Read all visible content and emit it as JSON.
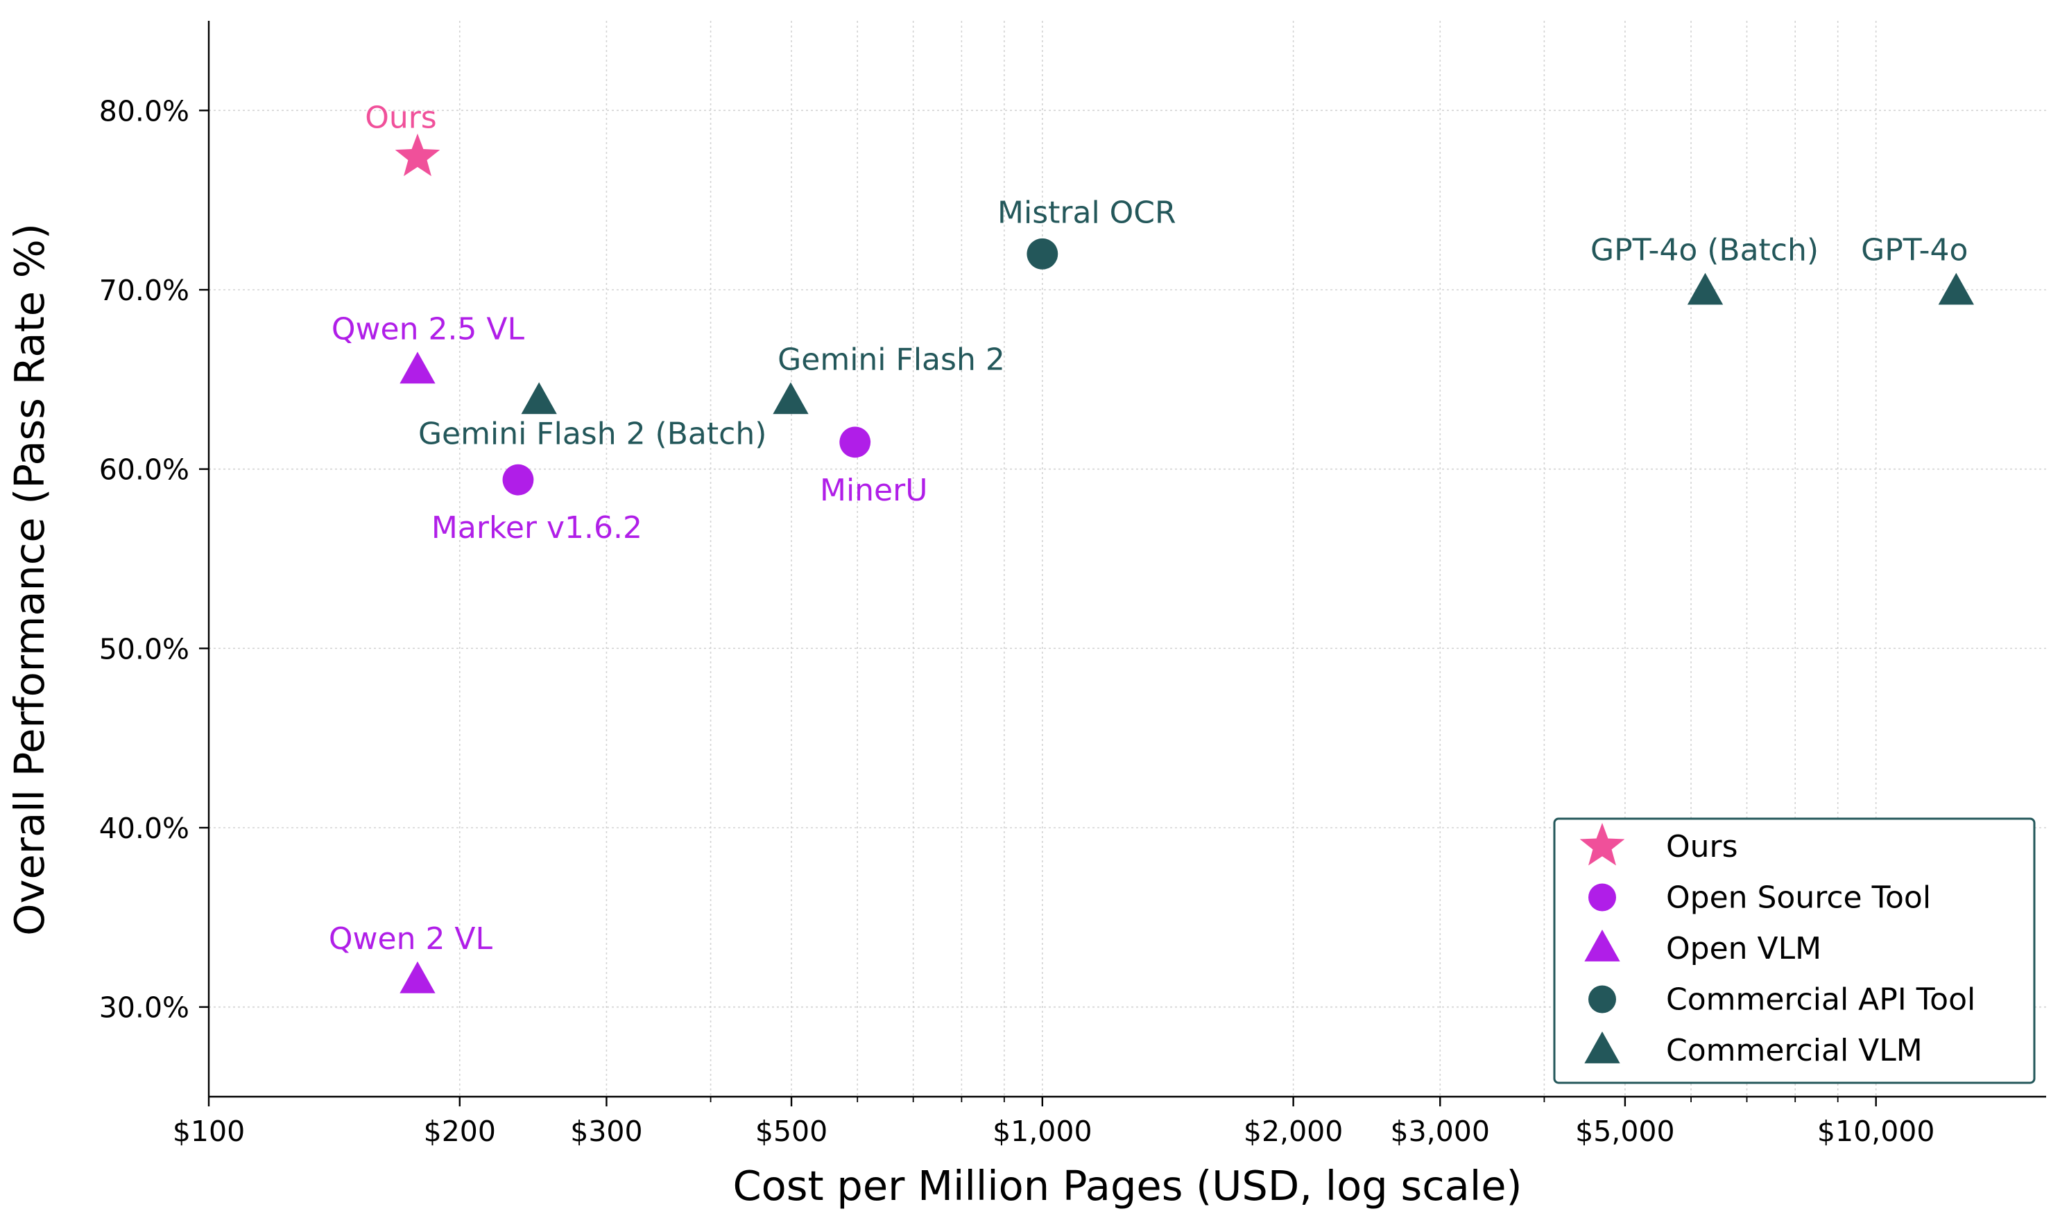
{
  "chart_data": {
    "type": "scatter",
    "x_scale": "log",
    "xlabel": "Cost per Million Pages (USD, log scale)",
    "ylabel": "Overall Performance (Pass Rate %)",
    "xlim": [
      100,
      16000
    ],
    "ylim": [
      25,
      85
    ],
    "x_ticks": [
      {
        "value": 100,
        "label": "$100"
      },
      {
        "value": 200,
        "label": "$200"
      },
      {
        "value": 300,
        "label": "$300"
      },
      {
        "value": 500,
        "label": "$500"
      },
      {
        "value": 1000,
        "label": "$1,000"
      },
      {
        "value": 2000,
        "label": "$2,000"
      },
      {
        "value": 3000,
        "label": "$3,000"
      },
      {
        "value": 5000,
        "label": "$5,000"
      },
      {
        "value": 10000,
        "label": "$10,000"
      }
    ],
    "y_ticks": [
      {
        "value": 30,
        "label": "30.0%"
      },
      {
        "value": 40,
        "label": "40.0%"
      },
      {
        "value": 50,
        "label": "50.0%"
      },
      {
        "value": 60,
        "label": "60.0%"
      },
      {
        "value": 70,
        "label": "70.0%"
      },
      {
        "value": 80,
        "label": "80.0%"
      }
    ],
    "grid": true,
    "legend_position": "bottom-right",
    "categories": [
      {
        "name": "Ours",
        "marker": "star",
        "color": "#f0509a"
      },
      {
        "name": "Open Source Tool",
        "marker": "circle",
        "color": "#b01ee8"
      },
      {
        "name": "Open VLM",
        "marker": "triangle",
        "color": "#b01ee8"
      },
      {
        "name": "Commercial API Tool",
        "marker": "circle",
        "color": "#23575a"
      },
      {
        "name": "Commercial VLM",
        "marker": "triangle",
        "color": "#23575a"
      }
    ],
    "points": [
      {
        "label": "Ours",
        "category": "Ours",
        "x": 178,
        "y": 77.4
      },
      {
        "label": "Qwen 2.5 VL",
        "category": "Open VLM",
        "x": 178,
        "y": 65.5
      },
      {
        "label": "Qwen 2 VL",
        "category": "Open VLM",
        "x": 178,
        "y": 31.5
      },
      {
        "label": "Marker v1.6.2",
        "category": "Open Source Tool",
        "x": 235,
        "y": 59.4
      },
      {
        "label": "MinerU",
        "category": "Open Source Tool",
        "x": 596,
        "y": 61.5
      },
      {
        "label": "Gemini Flash 2 (Batch)",
        "category": "Commercial VLM",
        "x": 249,
        "y": 63.8
      },
      {
        "label": "Gemini Flash 2",
        "category": "Commercial VLM",
        "x": 499,
        "y": 63.8
      },
      {
        "label": "Mistral OCR",
        "category": "Commercial API Tool",
        "x": 1000,
        "y": 72.0
      },
      {
        "label": "GPT-4o (Batch)",
        "category": "Commercial VLM",
        "x": 6240,
        "y": 69.9
      },
      {
        "label": "GPT-4o",
        "category": "Commercial VLM",
        "x": 12480,
        "y": 69.9
      }
    ]
  }
}
